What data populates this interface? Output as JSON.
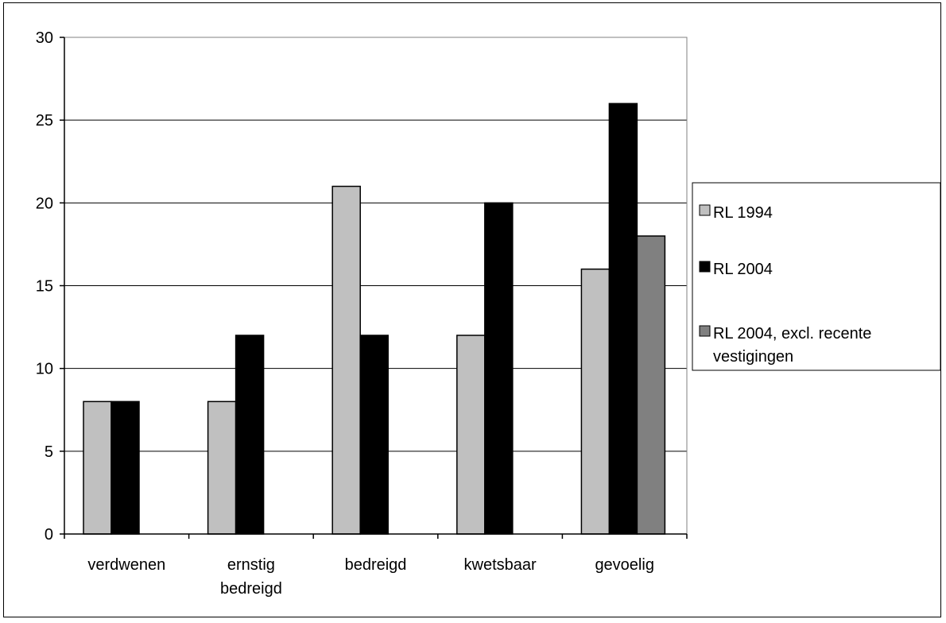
{
  "chart_data": {
    "type": "bar",
    "categories": [
      "verdwenen",
      "ernstig bedreigd",
      "bedreigd",
      "kwetsbaar",
      "gevoelig"
    ],
    "category_lines": [
      [
        "verdwenen"
      ],
      [
        "ernstig",
        "bedreigd"
      ],
      [
        "bedreigd"
      ],
      [
        "kwetsbaar"
      ],
      [
        "gevoelig"
      ]
    ],
    "series": [
      {
        "name": "RL 1994",
        "color": "#c0c0c0",
        "values": [
          8,
          8,
          21,
          12,
          16
        ]
      },
      {
        "name": "RL 2004",
        "color": "#000000",
        "values": [
          8,
          12,
          12,
          20,
          26
        ]
      },
      {
        "name": "RL 2004, excl. recente vestigingen",
        "color": "#808080",
        "values": [
          null,
          null,
          null,
          null,
          18
        ]
      }
    ],
    "legend_lines": [
      [
        "RL 1994"
      ],
      [
        "RL 2004"
      ],
      [
        "RL 2004, excl. recente",
        "vestigingen"
      ]
    ],
    "yticks": [
      0,
      5,
      10,
      15,
      20,
      25,
      30
    ],
    "ylim": [
      0,
      30
    ],
    "grid": true,
    "legend_position": "right",
    "title": "",
    "xlabel": "",
    "ylabel": ""
  }
}
